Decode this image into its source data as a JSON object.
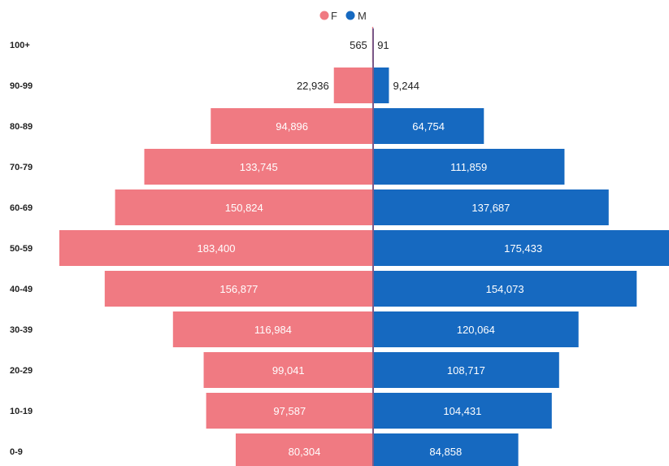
{
  "chart_data": {
    "type": "bar",
    "orientation": "horizontal-diverging",
    "categories": [
      "100+",
      "90-99",
      "80-89",
      "70-79",
      "60-69",
      "50-59",
      "40-49",
      "30-39",
      "20-29",
      "10-19",
      "0-9"
    ],
    "series": [
      {
        "name": "F",
        "color": "#f07a82",
        "values": [
          565,
          22936,
          94896,
          133745,
          150824,
          183400,
          156877,
          116984,
          99041,
          97587,
          80304
        ],
        "labels": [
          "565",
          "22,936",
          "94,896",
          "133,745",
          "150,824",
          "183,400",
          "156,877",
          "116,984",
          "99,041",
          "97,587",
          "80,304"
        ]
      },
      {
        "name": "M",
        "color": "#1669c0",
        "values": [
          91,
          9244,
          64754,
          111859,
          137687,
          175433,
          154073,
          120064,
          108717,
          104431,
          84858
        ],
        "labels": [
          "91",
          "9,244",
          "64,754",
          "111,859",
          "137,687",
          "175,433",
          "154,073",
          "120,064",
          "108,717",
          "104,431",
          "84,858"
        ]
      }
    ],
    "legend_position": "top-center",
    "grid": false,
    "xlim": [
      -183400,
      175433
    ]
  }
}
